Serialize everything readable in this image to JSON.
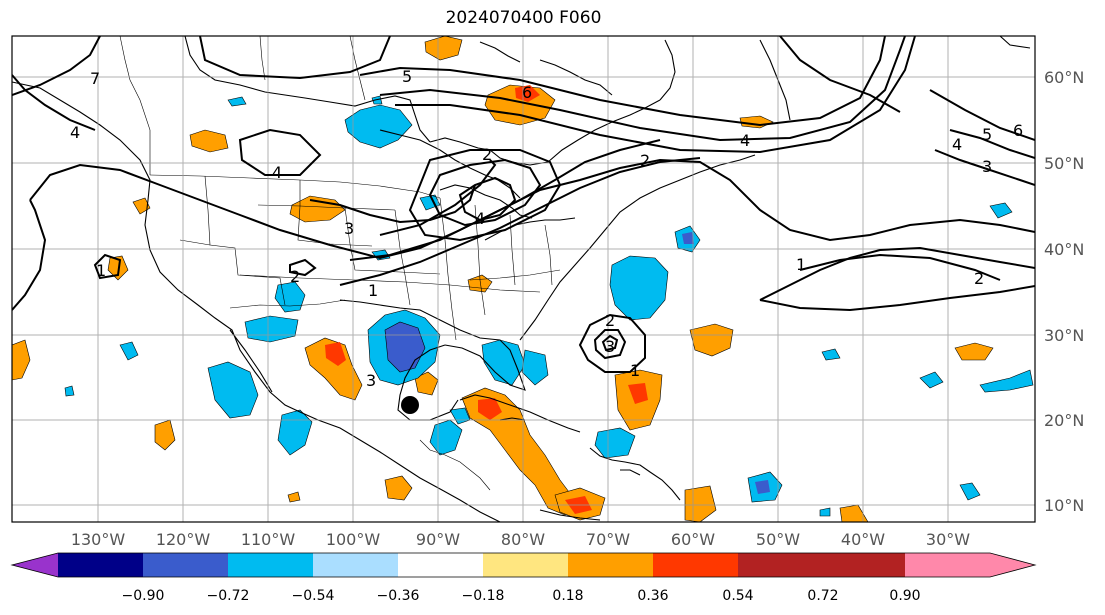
{
  "title": "2024070400 F060",
  "lon_labels": [
    "130°W",
    "120°W",
    "110°W",
    "100°W",
    "90°W",
    "80°W",
    "70°W",
    "60°W",
    "50°W",
    "40°W",
    "30°W"
  ],
  "lat_labels": [
    "60°N",
    "50°N",
    "40°N",
    "30°N",
    "20°N",
    "10°N"
  ],
  "colorbar": {
    "colors": [
      "#9933cc",
      "#000088",
      "#3a5ccc",
      "#00bbf0",
      "#aadeff",
      "#ffffff",
      "#ffe680",
      "#ff9f00",
      "#ff3800",
      "#b22222",
      "#ff88aa"
    ],
    "tick_labels": [
      "−0.90",
      "−0.72",
      "−0.54",
      "−0.36",
      "−0.18",
      "0.18",
      "0.36",
      "0.54",
      "0.72",
      "0.90"
    ]
  },
  "contour_labels": [
    "5",
    "6",
    "4",
    "5",
    "6",
    "4",
    "3",
    "2",
    "2",
    "4",
    "3",
    "4",
    "1",
    "2",
    "1",
    "1",
    "2",
    "2",
    "3",
    "1",
    "4",
    "7",
    "3"
  ],
  "markers": {
    "storm_center": "filled-circle"
  }
}
